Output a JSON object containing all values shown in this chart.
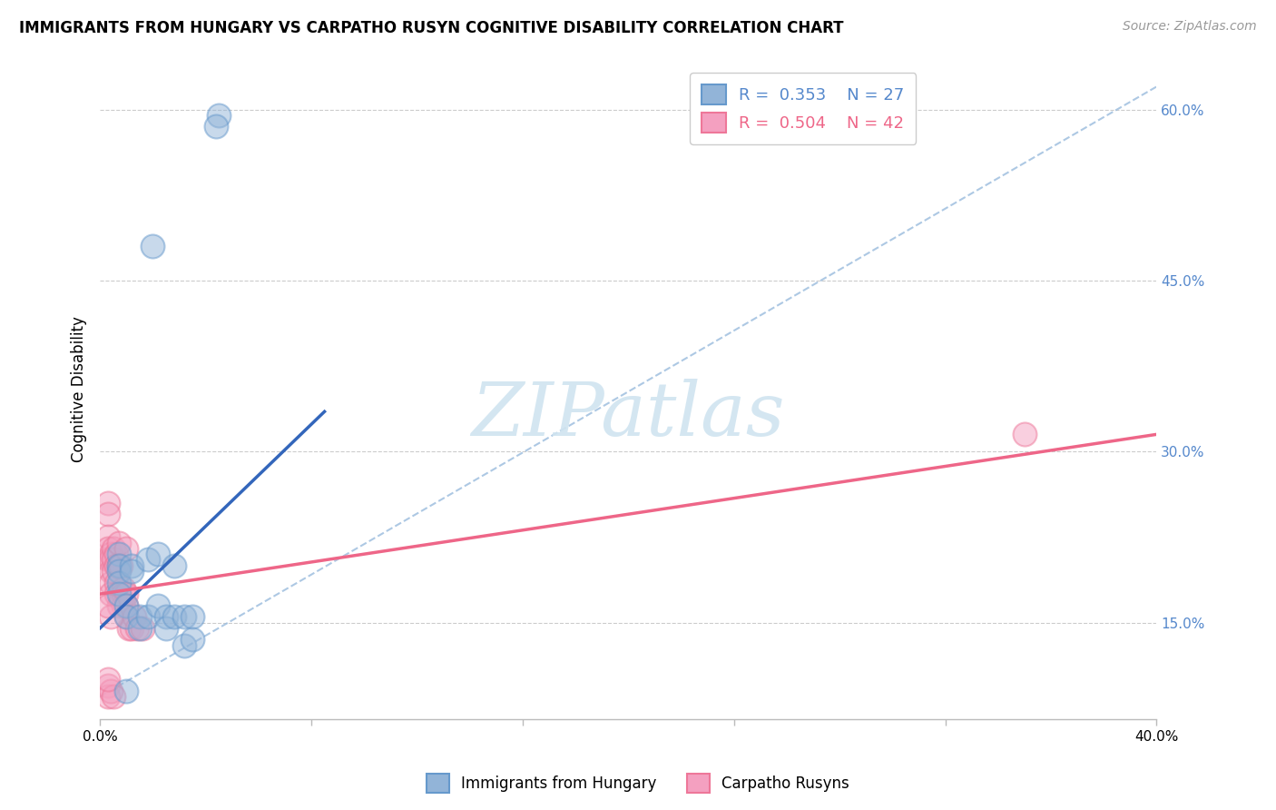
{
  "title": "IMMIGRANTS FROM HUNGARY VS CARPATHO RUSYN COGNITIVE DISABILITY CORRELATION CHART",
  "source": "Source: ZipAtlas.com",
  "ylabel": "Cognitive Disability",
  "xlim": [
    0.0,
    0.4
  ],
  "ylim": [
    0.065,
    0.645
  ],
  "yticks": [
    0.15,
    0.3,
    0.45,
    0.6
  ],
  "ytick_labels": [
    "15.0%",
    "30.0%",
    "45.0%",
    "60.0%"
  ],
  "blue_color": "#92B4D8",
  "pink_color": "#F4A0C0",
  "blue_edge_color": "#6699CC",
  "pink_edge_color": "#EE7799",
  "blue_line_color": "#3366BB",
  "pink_line_color": "#EE6688",
  "watermark_color": "#D5E5F0",
  "blue_scatter_x": [
    0.045,
    0.044,
    0.02,
    0.007,
    0.007,
    0.007,
    0.007,
    0.007,
    0.01,
    0.01,
    0.012,
    0.012,
    0.015,
    0.015,
    0.018,
    0.018,
    0.022,
    0.022,
    0.025,
    0.025,
    0.028,
    0.028,
    0.032,
    0.032,
    0.01,
    0.035,
    0.035
  ],
  "blue_scatter_y": [
    0.595,
    0.585,
    0.48,
    0.21,
    0.2,
    0.195,
    0.185,
    0.175,
    0.165,
    0.155,
    0.2,
    0.195,
    0.155,
    0.145,
    0.205,
    0.155,
    0.21,
    0.165,
    0.155,
    0.145,
    0.2,
    0.155,
    0.155,
    0.13,
    0.09,
    0.155,
    0.135
  ],
  "pink_scatter_x": [
    0.003,
    0.003,
    0.003,
    0.003,
    0.003,
    0.004,
    0.004,
    0.004,
    0.004,
    0.004,
    0.005,
    0.005,
    0.005,
    0.006,
    0.006,
    0.006,
    0.006,
    0.007,
    0.007,
    0.007,
    0.008,
    0.008,
    0.009,
    0.009,
    0.009,
    0.01,
    0.01,
    0.01,
    0.01,
    0.011,
    0.012,
    0.013,
    0.014,
    0.016,
    0.003,
    0.003,
    0.004,
    0.005,
    0.35,
    0.003,
    0.004,
    0.003
  ],
  "pink_scatter_y": [
    0.255,
    0.245,
    0.225,
    0.215,
    0.205,
    0.21,
    0.205,
    0.195,
    0.185,
    0.175,
    0.215,
    0.205,
    0.195,
    0.21,
    0.2,
    0.185,
    0.175,
    0.165,
    0.22,
    0.2,
    0.2,
    0.17,
    0.18,
    0.175,
    0.165,
    0.215,
    0.175,
    0.165,
    0.155,
    0.145,
    0.145,
    0.155,
    0.145,
    0.145,
    0.095,
    0.085,
    0.09,
    0.085,
    0.315,
    0.1,
    0.155,
    0.165
  ],
  "blue_line_x": [
    0.0,
    0.085
  ],
  "blue_line_y": [
    0.145,
    0.335
  ],
  "pink_line_x": [
    0.0,
    0.4
  ],
  "pink_line_y": [
    0.175,
    0.315
  ],
  "dashed_line_x": [
    0.0,
    0.4
  ],
  "dashed_line_y": [
    0.085,
    0.62
  ],
  "background_color": "#ffffff",
  "grid_color": "#cccccc"
}
